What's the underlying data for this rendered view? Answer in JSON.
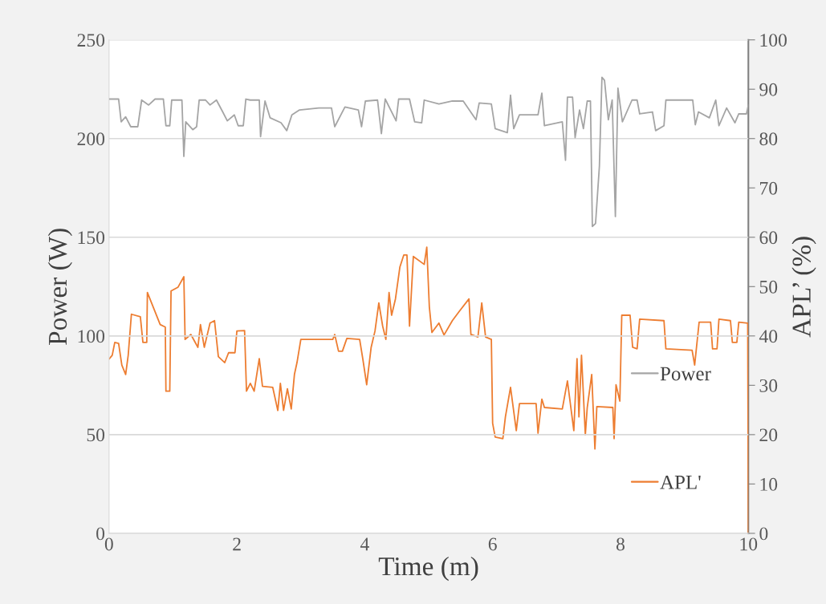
{
  "chart_data": {
    "type": "line",
    "xlabel": "Time (m)",
    "ylabel": "Power (W)",
    "y2label": "APL’ (%)",
    "xlim": [
      0,
      10
    ],
    "xticks": [
      0,
      2,
      4,
      6,
      8,
      10
    ],
    "ylim": [
      0,
      250
    ],
    "yticks": [
      0,
      50,
      100,
      150,
      200,
      250
    ],
    "y2lim": [
      0,
      100
    ],
    "y2ticks": [
      0,
      10,
      20,
      30,
      40,
      50,
      60,
      70,
      80,
      90,
      100
    ],
    "grid": "y",
    "legend": "right",
    "marker": "none",
    "line_style": "solid",
    "series": [
      {
        "name": "Power",
        "color": "#a5a5a5",
        "x": [
          0.01,
          0.15,
          0.19,
          0.26,
          0.34,
          0.45,
          0.51,
          0.62,
          0.72,
          0.85,
          0.89,
          0.95,
          0.98,
          1.14,
          1.17,
          1.2,
          1.31,
          1.37,
          1.41,
          1.51,
          1.58,
          1.68,
          1.77,
          1.85,
          1.96,
          2.02,
          2.1,
          2.14,
          2.21,
          2.35,
          2.37,
          2.44,
          2.52,
          2.69,
          2.78,
          2.86,
          2.98,
          3.28,
          3.48,
          3.53,
          3.69,
          3.9,
          3.95,
          4.01,
          4.2,
          4.26,
          4.32,
          4.49,
          4.53,
          4.7,
          4.78,
          4.89,
          4.93,
          5.16,
          5.37,
          5.54,
          5.74,
          5.79,
          5.98,
          6.04,
          6.23,
          6.28,
          6.33,
          6.42,
          6.71,
          6.77,
          6.81,
          7.09,
          7.14,
          7.17,
          7.25,
          7.29,
          7.36,
          7.42,
          7.48,
          7.53,
          7.56,
          7.61,
          7.67,
          7.71,
          7.75,
          7.81,
          7.87,
          7.92,
          7.96,
          8.03,
          8.18,
          8.26,
          8.3,
          8.5,
          8.55,
          8.68,
          8.71,
          9.13,
          9.17,
          9.22,
          9.39,
          9.49,
          9.54,
          9.66,
          9.79,
          9.85,
          9.97,
          10.0
        ],
        "values": [
          220,
          220,
          208.5,
          211,
          206,
          206,
          219.5,
          217,
          220,
          220,
          206.5,
          206.5,
          219.5,
          219.5,
          191,
          208.5,
          204.5,
          206,
          219.5,
          219.5,
          217,
          219.5,
          214,
          209,
          212,
          206.5,
          206.5,
          220,
          219.5,
          219.5,
          201,
          219,
          210.5,
          208,
          204,
          212,
          214.5,
          215.5,
          215.5,
          206,
          216,
          214.5,
          206,
          219,
          219.5,
          202.5,
          220,
          209,
          220,
          220,
          208.5,
          208,
          219.5,
          217.5,
          219,
          219,
          209.5,
          218,
          217.5,
          205,
          203,
          222,
          205,
          212,
          212,
          223,
          206.5,
          208.5,
          189,
          221,
          221,
          200.5,
          214.5,
          205,
          219,
          219,
          155.5,
          157,
          186,
          231,
          229.5,
          209.5,
          219.5,
          160.5,
          225.5,
          208.5,
          219.5,
          219.5,
          212.5,
          213.5,
          204,
          206.5,
          219.5,
          219.5,
          207,
          213.5,
          210.5,
          219.5,
          206.5,
          215.5,
          208,
          212.5,
          212.5,
          217
        ]
      },
      {
        "name": "APL'",
        "color": "#ed7d31",
        "axis": "y2",
        "x": [
          0.0,
          0.05,
          0.09,
          0.15,
          0.2,
          0.26,
          0.3,
          0.35,
          0.49,
          0.53,
          0.59,
          0.6,
          0.8,
          0.88,
          0.89,
          0.95,
          0.97,
          1.08,
          1.17,
          1.19,
          1.28,
          1.39,
          1.43,
          1.49,
          1.58,
          1.65,
          1.71,
          1.81,
          1.87,
          1.97,
          2.0,
          2.12,
          2.15,
          2.21,
          2.27,
          2.35,
          2.4,
          2.56,
          2.64,
          2.68,
          2.73,
          2.79,
          2.85,
          2.9,
          2.94,
          3.0,
          3.07,
          3.5,
          3.53,
          3.59,
          3.65,
          3.72,
          3.92,
          3.97,
          4.03,
          4.1,
          4.16,
          4.22,
          4.28,
          4.33,
          4.38,
          4.42,
          4.48,
          4.55,
          4.61,
          4.66,
          4.7,
          4.76,
          4.93,
          4.97,
          5.01,
          5.05,
          5.16,
          5.24,
          5.37,
          5.48,
          5.63,
          5.66,
          5.77,
          5.83,
          5.89,
          5.98,
          6.0,
          6.04,
          6.16,
          6.2,
          6.28,
          6.37,
          6.42,
          6.68,
          6.71,
          6.77,
          6.81,
          7.09,
          7.17,
          7.27,
          7.32,
          7.35,
          7.39,
          7.45,
          7.48,
          7.55,
          7.6,
          7.63,
          7.88,
          7.9,
          7.93,
          7.99,
          8.02,
          8.15,
          8.19,
          8.26,
          8.3,
          8.68,
          8.71,
          9.12,
          9.16,
          9.23,
          9.41,
          9.44,
          9.51,
          9.54,
          9.72,
          9.75,
          9.82,
          9.85,
          9.99,
          10.0
        ],
        "values": [
          35.3,
          36.1,
          38.7,
          38.5,
          34.1,
          32.2,
          36.1,
          44.4,
          43.9,
          38.7,
          38.7,
          48.8,
          42.3,
          41.8,
          28.8,
          28.8,
          49.1,
          49.9,
          52.0,
          39.3,
          40.3,
          37.7,
          42.3,
          37.7,
          42.6,
          43.1,
          35.8,
          34.6,
          36.6,
          36.6,
          41.0,
          41.1,
          28.8,
          30.4,
          28.8,
          35.4,
          29.8,
          29.6,
          24.9,
          30.4,
          24.9,
          29.3,
          25.2,
          32.2,
          34.6,
          39.3,
          39.3,
          39.3,
          40.3,
          36.9,
          36.9,
          39.5,
          39.3,
          35.3,
          30.1,
          37.7,
          41.0,
          46.7,
          42.0,
          39.3,
          48.8,
          44.2,
          47.5,
          54.0,
          56.4,
          56.4,
          42.0,
          56.1,
          54.5,
          58.0,
          45.9,
          40.7,
          42.6,
          40.2,
          43.1,
          45.0,
          47.5,
          40.3,
          39.8,
          46.7,
          39.8,
          39.3,
          22.3,
          19.5,
          19.2,
          23.6,
          29.6,
          20.8,
          26.3,
          26.3,
          20.3,
          27.2,
          25.5,
          25.2,
          30.9,
          20.8,
          35.4,
          23.6,
          36.1,
          20.0,
          25.5,
          32.2,
          17.1,
          25.7,
          25.5,
          19.2,
          30.1,
          26.8,
          44.2,
          44.2,
          37.7,
          37.4,
          43.4,
          43.1,
          37.4,
          37.1,
          34.1,
          42.8,
          42.8,
          37.4,
          37.4,
          43.4,
          43.1,
          38.7,
          38.7,
          42.8,
          42.6,
          0
        ]
      }
    ]
  }
}
